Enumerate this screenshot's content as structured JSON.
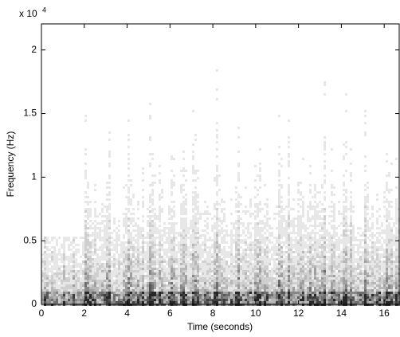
{
  "chart_data": {
    "type": "spectrogram",
    "x_label": "Time (seconds)",
    "y_label": "Frequency (Hz)",
    "y_multiplier": {
      "base": "x 10",
      "power": "4"
    },
    "xlim": [
      0,
      16.7
    ],
    "xticks": [
      0,
      2,
      4,
      6,
      8,
      10,
      12,
      14,
      16
    ],
    "ylim": [
      0,
      22050
    ],
    "yticks": [
      0,
      {
        "value": 5000,
        "label": "0.5"
      },
      {
        "value": 10000,
        "label": "1"
      },
      {
        "value": 15000,
        "label": "1.5"
      },
      {
        "value": 20000,
        "label": "2"
      }
    ],
    "colormap": "gray-inverted"
  }
}
